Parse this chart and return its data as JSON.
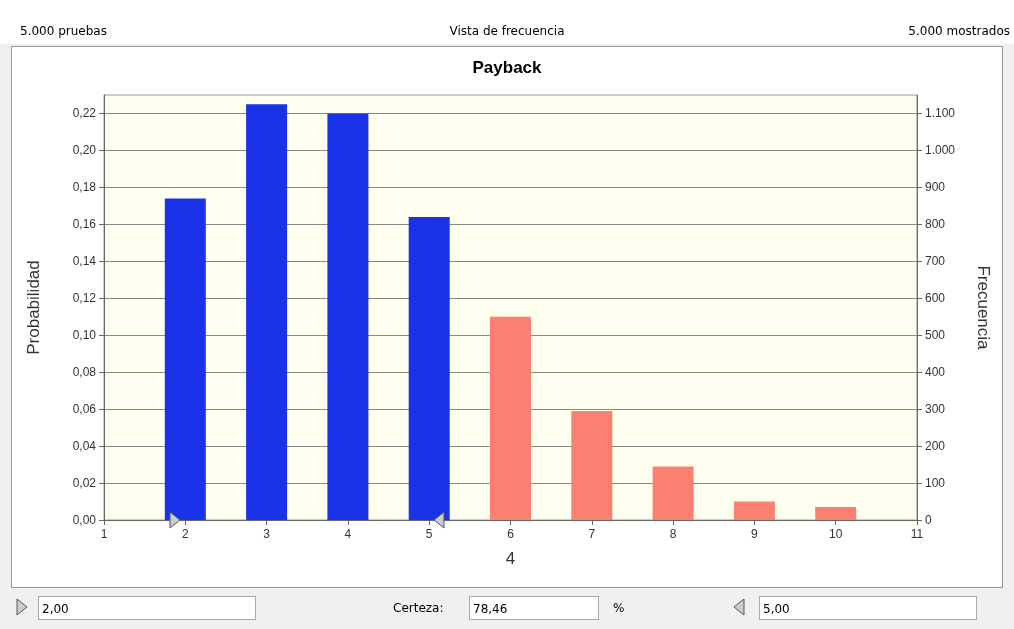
{
  "chart_data": {
    "type": "bar",
    "title": "Payback",
    "xlabel": "4",
    "ylabel": "Probabilidad",
    "y2label": "Frecuencia",
    "x": [
      2,
      3,
      4,
      5,
      6,
      7,
      8,
      9,
      10
    ],
    "values": [
      0.174,
      0.225,
      0.22,
      0.164,
      0.11,
      0.059,
      0.029,
      0.01,
      0.007
    ],
    "colors": [
      "#1a32e8",
      "#1a32e8",
      "#1a32e8",
      "#1a32e8",
      "#fa8072",
      "#fa8072",
      "#fa8072",
      "#fa8072",
      "#fa8072"
    ],
    "xlim": [
      1,
      11
    ],
    "xticks": [
      1,
      2,
      3,
      4,
      5,
      6,
      7,
      8,
      9,
      10,
      11
    ],
    "ylim": [
      0,
      0.23
    ],
    "yticks": [
      {
        "value": 0,
        "label": "0,00"
      },
      {
        "value": 0.02,
        "label": "0,02"
      },
      {
        "value": 0.04,
        "label": "0,04"
      },
      {
        "value": 0.06,
        "label": "0,06"
      },
      {
        "value": 0.08,
        "label": "0,08"
      },
      {
        "value": 0.1,
        "label": "0,10"
      },
      {
        "value": 0.12,
        "label": "0,12"
      },
      {
        "value": 0.14,
        "label": "0,14"
      },
      {
        "value": 0.16,
        "label": "0,16"
      },
      {
        "value": 0.18,
        "label": "0,18"
      },
      {
        "value": 0.2,
        "label": "0,20"
      },
      {
        "value": 0.22,
        "label": "0,22"
      }
    ],
    "y2lim": [
      0,
      1150
    ],
    "y2ticks": [
      0,
      100,
      200,
      300,
      400,
      500,
      600,
      700,
      800,
      900,
      {
        "value": 1000,
        "label": "1.000"
      },
      {
        "value": 1100,
        "label": "1.100"
      }
    ],
    "grid": "y",
    "annotations": [
      "5.000 pruebas",
      "Vista de frecuencia",
      "5.000 mostrados",
      "2,00",
      "Certeza:",
      "78,46",
      "%",
      "5,00"
    ]
  }
}
